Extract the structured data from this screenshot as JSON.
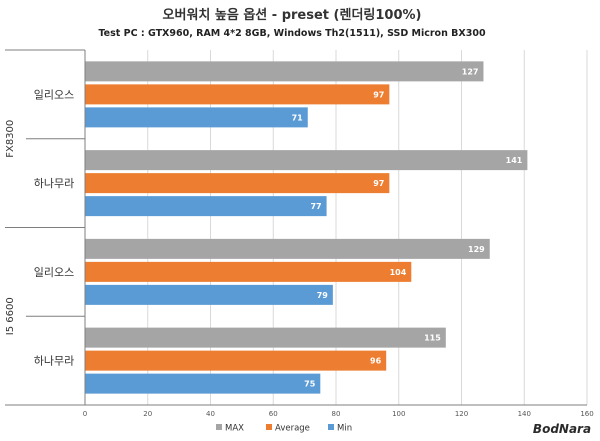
{
  "chart_data": {
    "type": "bar",
    "orientation": "horizontal",
    "title": "오버워치 높음 옵션 - preset (렌더링100%)",
    "subtitle": "Test PC : GTX960, RAM 4*2 8GB, Windows Th2(1511), SSD Micron BX300",
    "groups": [
      {
        "label": "FX8300",
        "categories": [
          "일리오스",
          "하나무라"
        ]
      },
      {
        "label": "I5 6600",
        "categories": [
          "일리오스",
          "하나무라"
        ]
      }
    ],
    "series": [
      {
        "name": "MAX",
        "color": "#a5a5a5",
        "values": [
          127,
          141,
          129,
          115
        ]
      },
      {
        "name": "Average",
        "color": "#ed7d31",
        "values": [
          97,
          97,
          104,
          96
        ]
      },
      {
        "name": "Min",
        "color": "#5b9bd5",
        "values": [
          71,
          77,
          79,
          75
        ]
      }
    ],
    "xlim": [
      0,
      160
    ],
    "xticks": [
      0,
      20,
      40,
      60,
      80,
      100,
      120,
      140,
      160
    ],
    "grid": true,
    "legend_position": "bottom"
  },
  "watermark": "BodNara"
}
